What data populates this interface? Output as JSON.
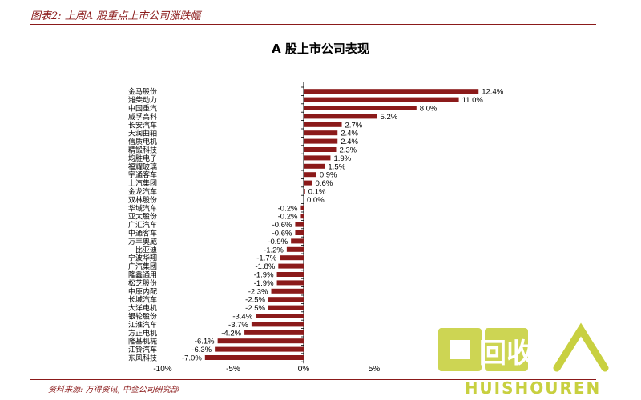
{
  "header": {
    "title": "图表2: 上周A 股重点上市公司涨跌幅"
  },
  "chart_data": {
    "type": "bar",
    "orientation": "horizontal",
    "title": "A 股上市公司表现",
    "xlabel": "",
    "ylabel": "",
    "xlim": [
      -10,
      15
    ],
    "xticks": [
      "-10%",
      "-5%",
      "0%",
      "5%"
    ],
    "bar_color": "#8b1a1a",
    "grid": false,
    "categories": [
      "金马股份",
      "潍柴动力",
      "中国重汽",
      "威孚高科",
      "长安汽车",
      "天润曲轴",
      "信质电机",
      "精锻科技",
      "均胜电子",
      "福耀玻璃",
      "宇通客车",
      "上汽集团",
      "金龙汽车",
      "双林股份",
      "华域汽车",
      "亚太股份",
      "广汇汽车",
      "中通客车",
      "万丰奥威",
      "比亚迪",
      "宁波华翔",
      "广汽集团",
      "隆鑫通用",
      "松芝股份",
      "中原内配",
      "长城汽车",
      "大洋电机",
      "银轮股份",
      "江淮汽车",
      "方正电机",
      "隆基机械",
      "江铃汽车",
      "东风科技"
    ],
    "values": [
      12.4,
      11.0,
      8.0,
      5.2,
      2.7,
      2.4,
      2.4,
      2.3,
      1.9,
      1.5,
      0.9,
      0.6,
      0.1,
      0.0,
      -0.2,
      -0.2,
      -0.6,
      -0.6,
      -0.9,
      -1.2,
      -1.7,
      -1.8,
      -1.9,
      -1.9,
      -2.3,
      -2.5,
      -2.5,
      -3.4,
      -3.7,
      -4.2,
      -6.1,
      -6.3,
      -7.0
    ],
    "value_labels": [
      "12.4%",
      "11.0%",
      "8.0%",
      "5.2%",
      "2.7%",
      "2.4%",
      "2.4%",
      "2.3%",
      "1.9%",
      "1.5%",
      "0.9%",
      "0.6%",
      "0.1%",
      "0.0%",
      "-0.2%",
      "-0.2%",
      "-0.6%",
      "-0.6%",
      "-0.9%",
      "-1.2%",
      "-1.7%",
      "-1.8%",
      "-1.9%",
      "-1.9%",
      "-2.3%",
      "-2.5%",
      "-2.5%",
      "-3.4%",
      "-3.7%",
      "-4.2%",
      "-6.1%",
      "-6.3%",
      "-7.0%"
    ]
  },
  "footer": {
    "source": "资料来源: 万得资讯, 中金公司研究部"
  },
  "watermark": {
    "text": "HUISHOUREN",
    "logo_chars": "回收",
    "color": "#c8d040"
  }
}
